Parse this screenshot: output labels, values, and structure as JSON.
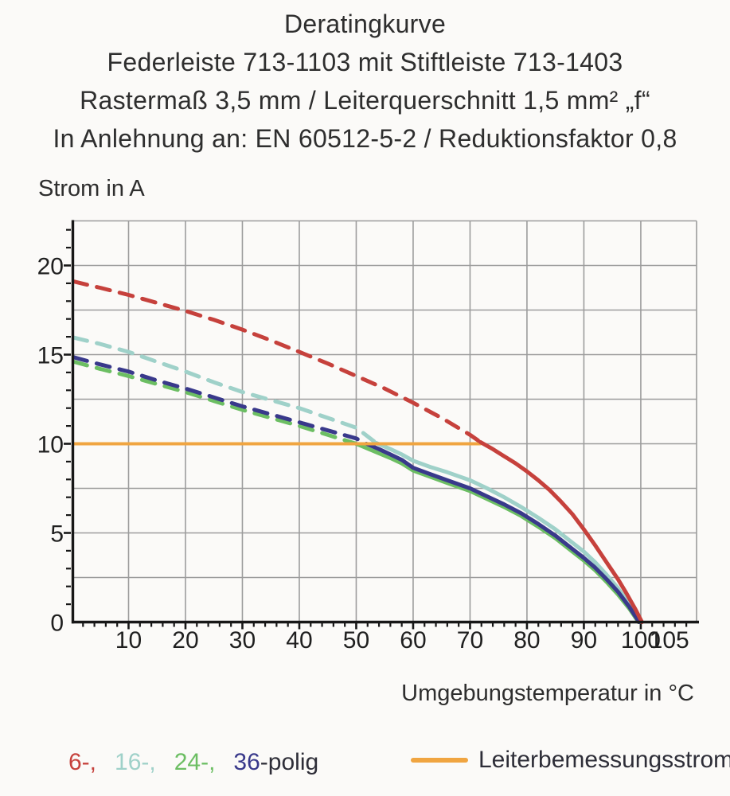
{
  "title_block": {
    "lines": [
      "Deratingkurve",
      "Federleiste 713-1103 mit Stiftleiste 713-1403",
      "Rastermaß 3,5 mm / Leiterquerschnitt 1,5 mm² „f“",
      "In Anlehnung an: EN 60512-5-2 / Reduktionsfaktor 0,8"
    ]
  },
  "chart_data": {
    "type": "line",
    "title": "Deratingkurve",
    "xlabel": "Umgebungstemperatur in °C",
    "ylabel": "Strom in A",
    "xlim": [
      0,
      109.8
    ],
    "ylim": [
      0,
      22.5
    ],
    "grid": true,
    "x_gridlines": [
      10,
      20,
      30,
      40,
      50,
      60,
      70,
      80,
      90,
      100,
      109.8
    ],
    "y_gridlines": [
      2.5,
      5,
      7.5,
      10,
      12.5,
      15,
      17.5,
      20,
      22.5
    ],
    "x_tick_labels": [
      10,
      20,
      30,
      40,
      50,
      60,
      70,
      80,
      90,
      100,
      105
    ],
    "y_tick_labels": [
      0,
      5,
      10,
      15,
      20
    ],
    "x_minor_tick_step": 2,
    "y_minor_tick_step": 1,
    "legend_position": "bottom",
    "colors": {
      "grid": "#9c9c9c",
      "axis": "#171717",
      "red": "#c6413c",
      "cyan": "#9fd1c9",
      "green": "#6cbe63",
      "navy": "#39398b",
      "orange": "#f0a541"
    },
    "series": [
      {
        "name": "16-polig",
        "color": "#9fd1c9",
        "segments": [
          {
            "style": "dashed",
            "points": [
              [
                0.4,
                15.95
              ],
              [
                5,
                15.6
              ],
              [
                10,
                15.15
              ],
              [
                15,
                14.6
              ],
              [
                20,
                14.05
              ],
              [
                25,
                13.45
              ],
              [
                30,
                12.9
              ],
              [
                35,
                12.45
              ],
              [
                40,
                12.0
              ],
              [
                45,
                11.45
              ],
              [
                50,
                10.9
              ],
              [
                53.5,
                10.05
              ]
            ]
          },
          {
            "style": "solid",
            "points": [
              [
                53.5,
                10.05
              ],
              [
                56,
                9.7
              ],
              [
                58,
                9.4
              ],
              [
                60,
                9.05
              ],
              [
                63,
                8.7
              ],
              [
                66,
                8.4
              ],
              [
                70,
                7.95
              ],
              [
                73,
                7.5
              ],
              [
                76,
                7.0
              ],
              [
                79,
                6.45
              ],
              [
                82,
                5.85
              ],
              [
                85,
                5.2
              ],
              [
                88,
                4.45
              ],
              [
                90,
                3.95
              ],
              [
                92,
                3.35
              ],
              [
                94,
                2.65
              ],
              [
                96,
                1.9
              ],
              [
                98,
                1.0
              ],
              [
                99.8,
                0
              ]
            ]
          }
        ]
      },
      {
        "name": "24-polig",
        "color": "#6cbe63",
        "segments": [
          {
            "style": "dashed",
            "points": [
              [
                0.4,
                14.6
              ],
              [
                5,
                14.2
              ],
              [
                10,
                13.8
              ],
              [
                15,
                13.35
              ],
              [
                20,
                12.9
              ],
              [
                25,
                12.4
              ],
              [
                30,
                11.9
              ],
              [
                35,
                11.45
              ],
              [
                40,
                11.0
              ],
              [
                45,
                10.5
              ],
              [
                50,
                10.0
              ]
            ]
          },
          {
            "style": "solid",
            "points": [
              [
                50,
                10.0
              ],
              [
                53,
                9.6
              ],
              [
                56,
                9.2
              ],
              [
                58,
                8.9
              ],
              [
                60,
                8.5
              ],
              [
                63,
                8.15
              ],
              [
                66,
                7.8
              ],
              [
                70,
                7.35
              ],
              [
                73,
                6.9
              ],
              [
                76,
                6.45
              ],
              [
                79,
                5.95
              ],
              [
                82,
                5.35
              ],
              [
                85,
                4.7
              ],
              [
                88,
                3.95
              ],
              [
                90,
                3.45
              ],
              [
                92,
                2.9
              ],
              [
                94,
                2.25
              ],
              [
                96,
                1.55
              ],
              [
                98,
                0.75
              ],
              [
                99.6,
                0
              ]
            ]
          }
        ]
      },
      {
        "name": "36-polig",
        "color": "#39398b",
        "segments": [
          {
            "style": "dashed",
            "points": [
              [
                0.4,
                14.85
              ],
              [
                5,
                14.45
              ],
              [
                10,
                14.05
              ],
              [
                15,
                13.55
              ],
              [
                20,
                13.1
              ],
              [
                25,
                12.6
              ],
              [
                30,
                12.1
              ],
              [
                35,
                11.65
              ],
              [
                40,
                11.2
              ],
              [
                45,
                10.75
              ],
              [
                50,
                10.3
              ],
              [
                51.8,
                10.0
              ]
            ]
          },
          {
            "style": "solid",
            "points": [
              [
                51.8,
                10.0
              ],
              [
                54,
                9.7
              ],
              [
                56,
                9.4
              ],
              [
                58,
                9.1
              ],
              [
                60,
                8.65
              ],
              [
                63,
                8.3
              ],
              [
                66,
                7.95
              ],
              [
                70,
                7.5
              ],
              [
                73,
                7.05
              ],
              [
                76,
                6.6
              ],
              [
                79,
                6.1
              ],
              [
                82,
                5.5
              ],
              [
                85,
                4.85
              ],
              [
                88,
                4.1
              ],
              [
                90,
                3.6
              ],
              [
                92,
                3.05
              ],
              [
                94,
                2.4
              ],
              [
                96,
                1.7
              ],
              [
                98,
                0.85
              ],
              [
                99.7,
                0
              ]
            ]
          }
        ]
      },
      {
        "name": "Leiterbemessungsstrom",
        "color": "#f0a541",
        "width": 4,
        "segments": [
          {
            "style": "solid",
            "points": [
              [
                0.4,
                10
              ],
              [
                71.8,
                10
              ]
            ]
          }
        ]
      },
      {
        "name": "6-polig",
        "color": "#c6413c",
        "segments": [
          {
            "style": "dashed",
            "points": [
              [
                0.4,
                19.1
              ],
              [
                5,
                18.75
              ],
              [
                10,
                18.35
              ],
              [
                15,
                17.9
              ],
              [
                20,
                17.45
              ],
              [
                25,
                16.95
              ],
              [
                30,
                16.4
              ],
              [
                35,
                15.8
              ],
              [
                40,
                15.15
              ],
              [
                45,
                14.5
              ],
              [
                50,
                13.8
              ],
              [
                55,
                13.1
              ],
              [
                60,
                12.3
              ],
              [
                65,
                11.45
              ],
              [
                70,
                10.5
              ],
              [
                71.8,
                10.1
              ]
            ]
          },
          {
            "style": "solid",
            "points": [
              [
                71.8,
                10.1
              ],
              [
                74,
                9.7
              ],
              [
                76,
                9.3
              ],
              [
                78,
                8.9
              ],
              [
                80,
                8.45
              ],
              [
                82,
                7.95
              ],
              [
                84,
                7.4
              ],
              [
                86,
                6.75
              ],
              [
                88,
                6.05
              ],
              [
                90,
                5.2
              ],
              [
                92,
                4.3
              ],
              [
                94,
                3.35
              ],
              [
                96,
                2.4
              ],
              [
                97.5,
                1.6
              ],
              [
                99,
                0.75
              ],
              [
                100.2,
                0
              ]
            ]
          }
        ]
      }
    ]
  },
  "legend": {
    "pin_items": [
      {
        "text": "6-,",
        "color": "#c6413c"
      },
      {
        "text": "16-,",
        "color": "#9fd1c9"
      },
      {
        "text": "24-,",
        "color": "#6cbe63"
      },
      {
        "text": "36",
        "color": "#39398b"
      }
    ],
    "pin_suffix": {
      "text": "-polig",
      "color": "#2e2e38"
    },
    "rated_label": "Leiterbemessungsstrom",
    "rated_color": "#f0a541"
  }
}
